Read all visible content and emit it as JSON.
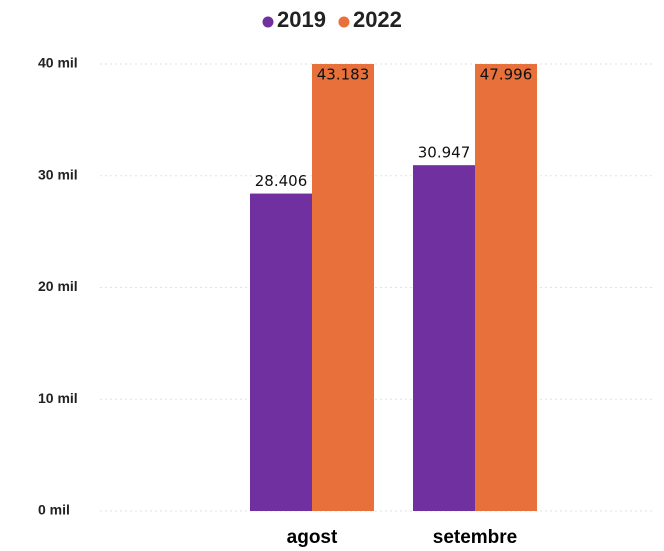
{
  "chart_data": {
    "type": "bar",
    "categories": [
      "agost",
      "setembre"
    ],
    "series": [
      {
        "name": "2019",
        "color": "#7030a0",
        "values": [
          28406,
          30947
        ],
        "value_labels": [
          "28.406",
          "30.947"
        ]
      },
      {
        "name": "2022",
        "color": "#e8703a",
        "values": [
          43183,
          47996
        ],
        "value_labels": [
          "43.183",
          "47.996"
        ]
      }
    ],
    "ylim": [
      0,
      40000
    ],
    "yticks": [
      {
        "value": 0,
        "label": "0 mil"
      },
      {
        "value": 10000,
        "label": "10 mil"
      },
      {
        "value": 20000,
        "label": "20 mil"
      },
      {
        "value": 30000,
        "label": "30 mil"
      },
      {
        "value": 40000,
        "label": "40 mil"
      }
    ],
    "grid": true
  }
}
